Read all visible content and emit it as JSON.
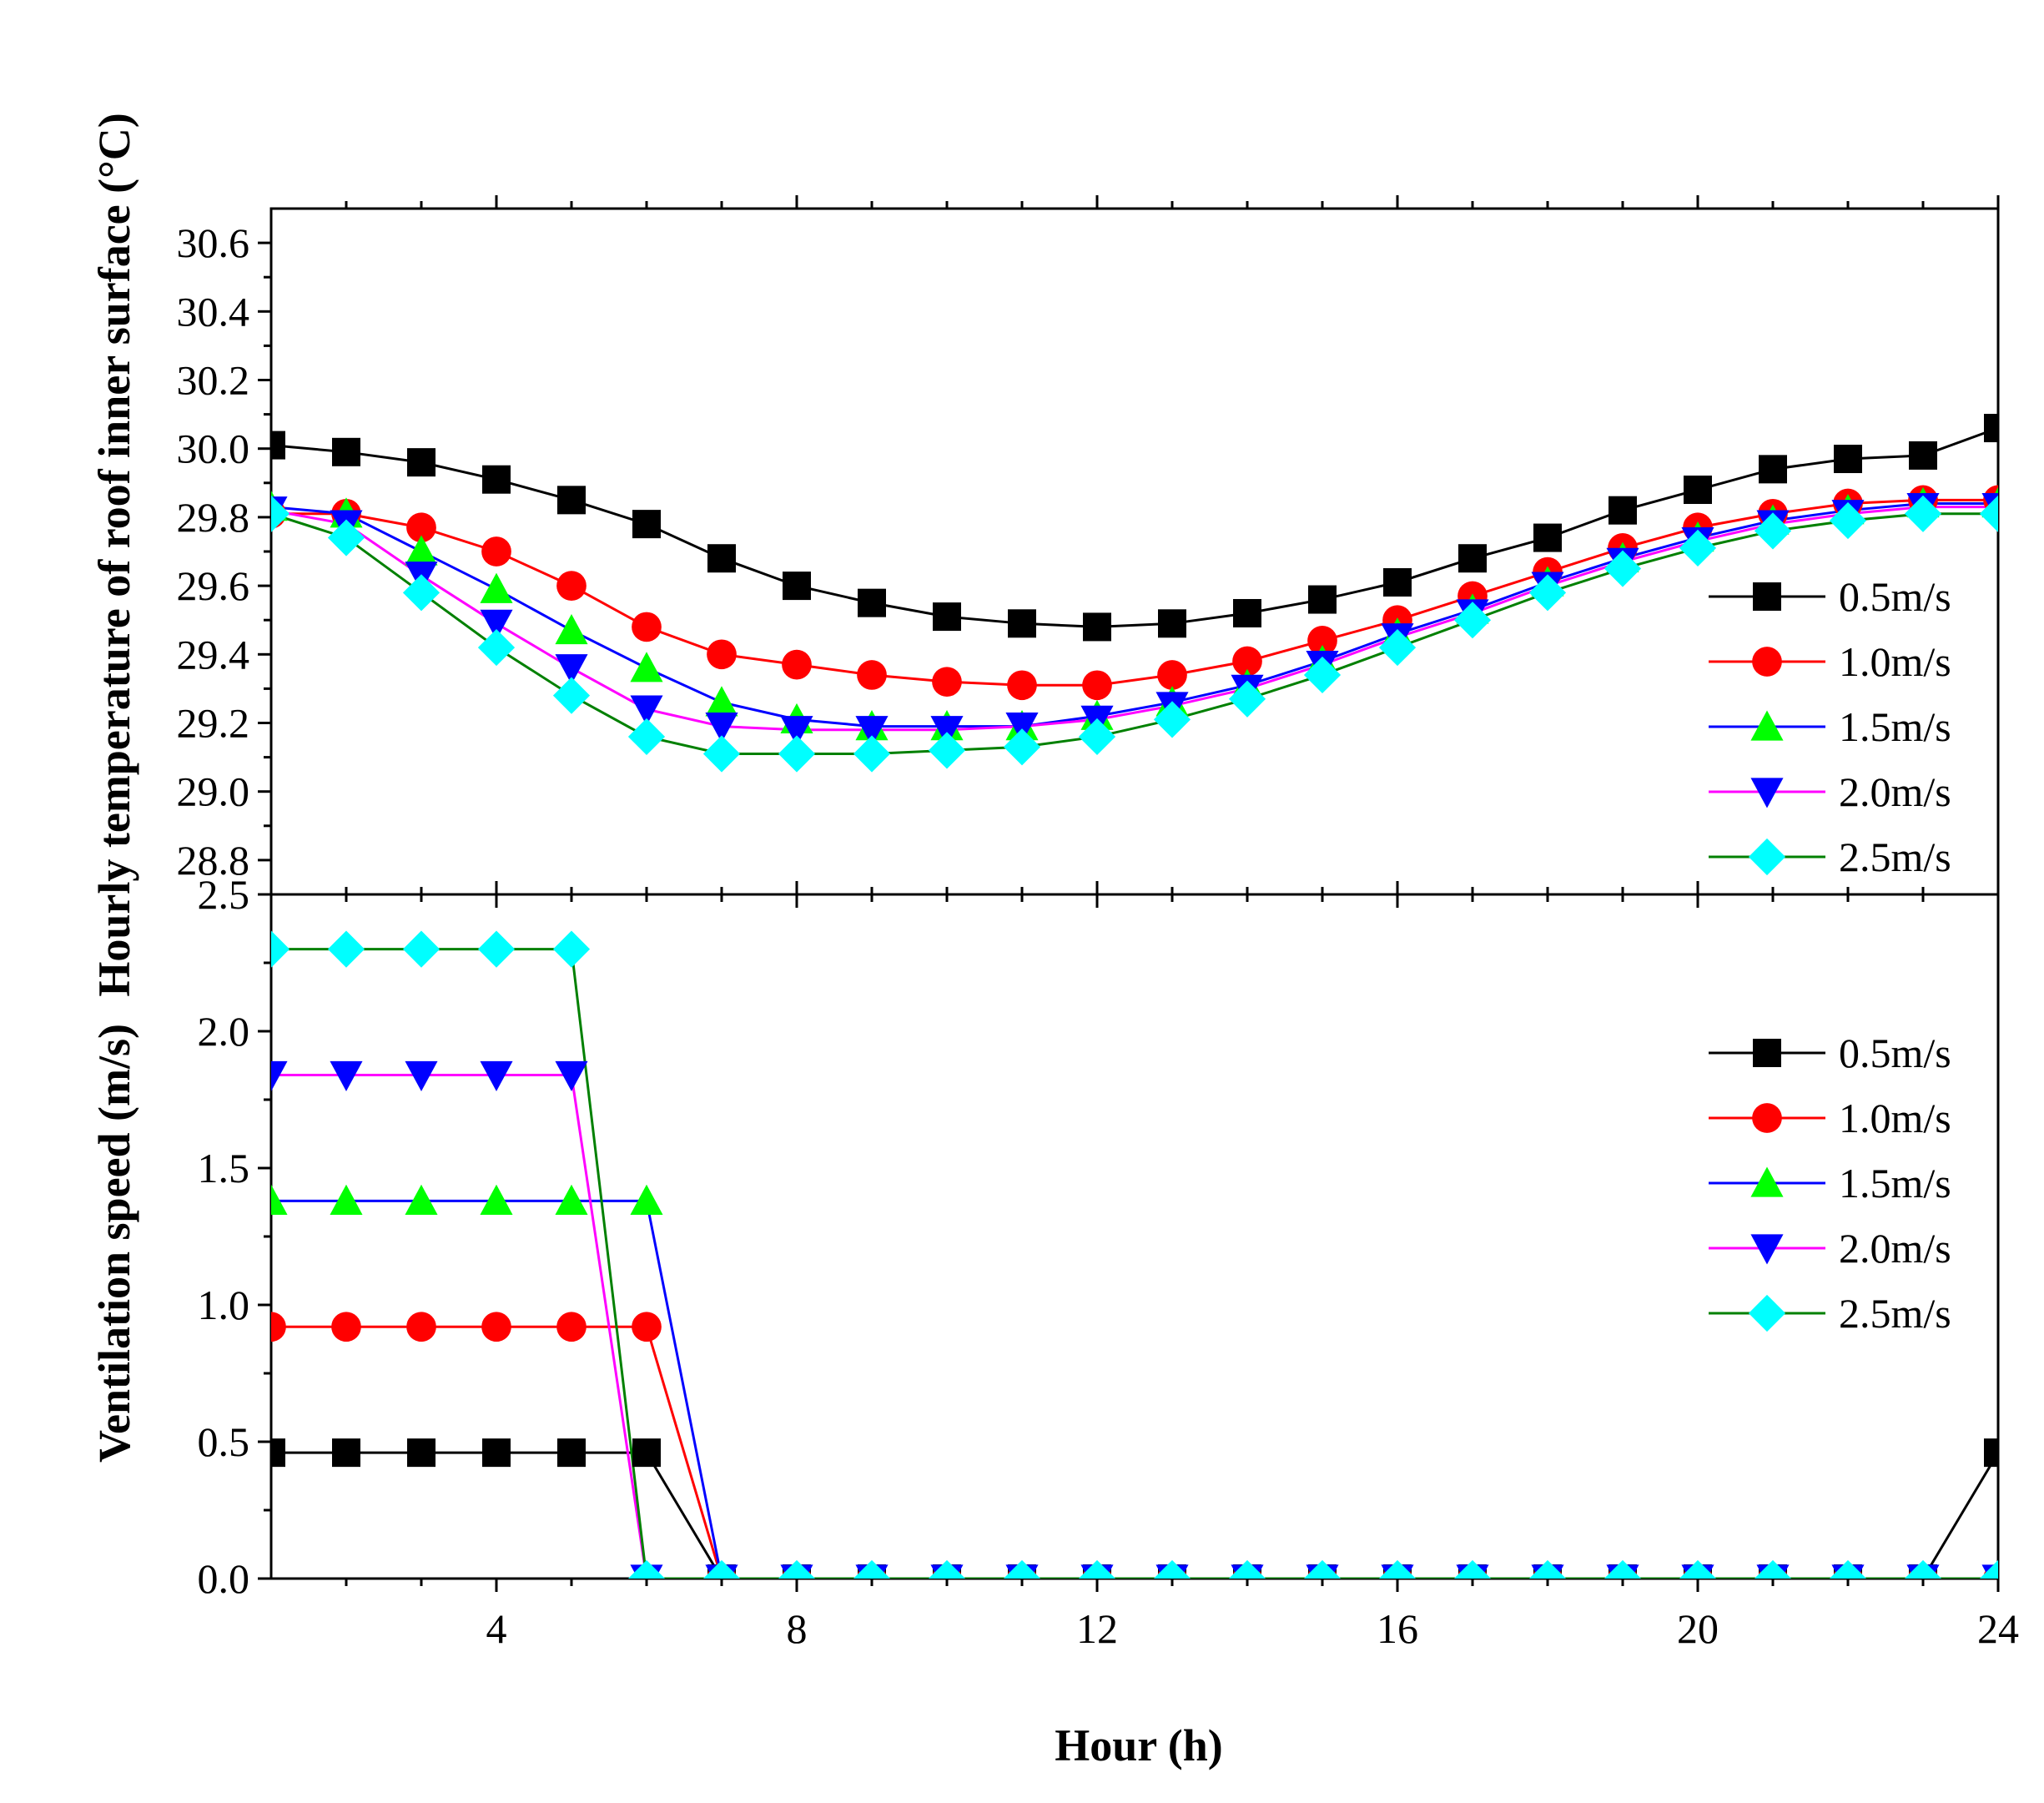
{
  "chart_data": [
    {
      "type": "line",
      "panel": "top",
      "title": "",
      "ylabel": "Hourly temperature of roof inner surface (°C)",
      "xlabel": "",
      "xlim": [
        1,
        24
      ],
      "ylim": [
        28.7,
        30.7
      ],
      "yticks": [
        28.8,
        29.0,
        29.2,
        29.4,
        29.6,
        29.8,
        30.0,
        30.2,
        30.4,
        30.6
      ],
      "ytick_labels": [
        "28.8",
        "29.0",
        "29.2",
        "29.4",
        "29.6",
        "29.8",
        "30.0",
        "30.2",
        "30.4",
        "30.6"
      ],
      "x": [
        1,
        2,
        3,
        4,
        5,
        6,
        7,
        8,
        9,
        10,
        11,
        12,
        13,
        14,
        15,
        16,
        17,
        18,
        19,
        20,
        21,
        22,
        23,
        24
      ],
      "legend_position": "right",
      "series": [
        {
          "name": "0.5m/s",
          "line_color": "#000000",
          "marker": "square",
          "marker_color": "#000000",
          "values": [
            30.01,
            29.99,
            29.96,
            29.91,
            29.85,
            29.78,
            29.68,
            29.6,
            29.55,
            29.51,
            29.49,
            29.48,
            29.49,
            29.52,
            29.56,
            29.61,
            29.68,
            29.74,
            29.82,
            29.88,
            29.94,
            29.97,
            29.98,
            30.06
          ]
        },
        {
          "name": "1.0m/s",
          "line_color": "#ff0000",
          "marker": "circle",
          "marker_color": "#ff0000",
          "values": [
            29.81,
            29.81,
            29.77,
            29.7,
            29.6,
            29.48,
            29.4,
            29.37,
            29.34,
            29.32,
            29.31,
            29.31,
            29.34,
            29.38,
            29.44,
            29.5,
            29.57,
            29.64,
            29.71,
            29.77,
            29.81,
            29.84,
            29.85,
            29.85
          ]
        },
        {
          "name": "1.5m/s",
          "line_color": "#0000ff",
          "marker": "triangle-up",
          "marker_color": "#00ff00",
          "values": [
            29.83,
            29.81,
            29.7,
            29.59,
            29.47,
            29.36,
            29.26,
            29.21,
            29.19,
            29.19,
            29.19,
            29.22,
            29.26,
            29.31,
            29.38,
            29.46,
            29.53,
            29.61,
            29.68,
            29.74,
            29.79,
            29.82,
            29.84,
            29.84
          ]
        },
        {
          "name": "2.0m/s",
          "line_color": "#ff00ff",
          "marker": "triangle-down",
          "marker_color": "#0000ff",
          "values": [
            29.82,
            29.78,
            29.63,
            29.49,
            29.36,
            29.24,
            29.19,
            29.18,
            29.18,
            29.18,
            29.19,
            29.21,
            29.25,
            29.3,
            29.37,
            29.45,
            29.52,
            29.6,
            29.67,
            29.73,
            29.78,
            29.81,
            29.83,
            29.83
          ]
        },
        {
          "name": "2.5m/s",
          "line_color": "#008000",
          "marker": "diamond",
          "marker_color": "#00ffff",
          "values": [
            29.81,
            29.74,
            29.58,
            29.42,
            29.28,
            29.16,
            29.11,
            29.11,
            29.11,
            29.12,
            29.13,
            29.16,
            29.21,
            29.27,
            29.34,
            29.42,
            29.5,
            29.58,
            29.65,
            29.71,
            29.76,
            29.79,
            29.81,
            29.81
          ]
        }
      ]
    },
    {
      "type": "line",
      "panel": "bottom",
      "title": "",
      "ylabel": "Ventilation speed (m/s)",
      "xlabel": "Hour (h)",
      "xlim": [
        1,
        24
      ],
      "ylim": [
        0,
        2.5
      ],
      "yticks": [
        0.0,
        0.5,
        1.0,
        1.5,
        2.0,
        2.5
      ],
      "ytick_labels": [
        "0.0",
        "0.5",
        "1.0",
        "1.5",
        "2.0",
        "2.5"
      ],
      "xticks": [
        4,
        8,
        12,
        16,
        20,
        24
      ],
      "xtick_labels": [
        "4",
        "8",
        "12",
        "16",
        "20",
        "24"
      ],
      "x": [
        1,
        2,
        3,
        4,
        5,
        6,
        7,
        8,
        9,
        10,
        11,
        12,
        13,
        14,
        15,
        16,
        17,
        18,
        19,
        20,
        21,
        22,
        23,
        24
      ],
      "legend_position": "right",
      "series": [
        {
          "name": "0.5m/s",
          "line_color": "#000000",
          "marker": "square",
          "marker_color": "#000000",
          "values": [
            0.46,
            0.46,
            0.46,
            0.46,
            0.46,
            0.46,
            0,
            0,
            0,
            0,
            0,
            0,
            0,
            0,
            0,
            0,
            0,
            0,
            0,
            0,
            0,
            0,
            0,
            0.46
          ]
        },
        {
          "name": "1.0m/s",
          "line_color": "#ff0000",
          "marker": "circle",
          "marker_color": "#ff0000",
          "values": [
            0.92,
            0.92,
            0.92,
            0.92,
            0.92,
            0.92,
            0,
            0,
            0,
            0,
            0,
            0,
            0,
            0,
            0,
            0,
            0,
            0,
            0,
            0,
            0,
            0,
            0,
            0
          ]
        },
        {
          "name": "1.5m/s",
          "line_color": "#0000ff",
          "marker": "triangle-up",
          "marker_color": "#00ff00",
          "values": [
            1.38,
            1.38,
            1.38,
            1.38,
            1.38,
            1.38,
            0,
            0,
            0,
            0,
            0,
            0,
            0,
            0,
            0,
            0,
            0,
            0,
            0,
            0,
            0,
            0,
            0,
            0
          ]
        },
        {
          "name": "2.0m/s",
          "line_color": "#ff00ff",
          "marker": "triangle-down",
          "marker_color": "#0000ff",
          "values": [
            1.84,
            1.84,
            1.84,
            1.84,
            1.84,
            0,
            0,
            0,
            0,
            0,
            0,
            0,
            0,
            0,
            0,
            0,
            0,
            0,
            0,
            0,
            0,
            0,
            0,
            0
          ]
        },
        {
          "name": "2.5m/s",
          "line_color": "#008000",
          "marker": "diamond",
          "marker_color": "#00ffff",
          "values": [
            2.3,
            2.3,
            2.3,
            2.3,
            2.3,
            0,
            0,
            0,
            0,
            0,
            0,
            0,
            0,
            0,
            0,
            0,
            0,
            0,
            0,
            0,
            0,
            0,
            0,
            0
          ]
        }
      ]
    }
  ]
}
